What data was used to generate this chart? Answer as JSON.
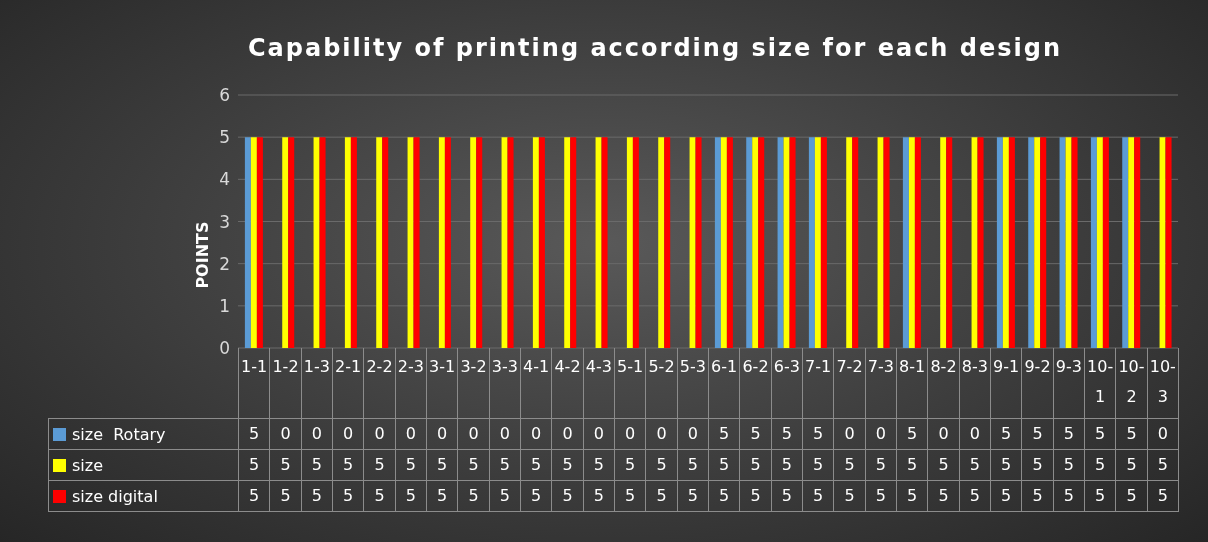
{
  "chart_data": {
    "type": "bar",
    "title": "Capability of printing according size for each design",
    "ylabel": "POINTS",
    "categories": [
      "1-1",
      "1-2",
      "1-3",
      "2-1",
      "2-2",
      "2-3",
      "3-1",
      "3-2",
      "3-3",
      "4-1",
      "4-2",
      "4-3",
      "5-1",
      "5-2",
      "5-3",
      "6-1",
      "6-2",
      "6-3",
      "7-1",
      "7-2",
      "7-3",
      "8-1",
      "8-2",
      "8-3",
      "9-1",
      "9-2",
      "9-3",
      "10-1",
      "10-2",
      "10-3"
    ],
    "series": [
      {
        "name": "size  Rotary",
        "color": "#5b9bd5",
        "values": [
          5,
          0,
          0,
          0,
          0,
          0,
          0,
          0,
          0,
          0,
          0,
          0,
          0,
          0,
          0,
          5,
          5,
          5,
          5,
          0,
          0,
          5,
          0,
          0,
          5,
          5,
          5,
          5,
          5,
          0
        ]
      },
      {
        "name": "size",
        "color": "#ffff00",
        "values": [
          5,
          5,
          5,
          5,
          5,
          5,
          5,
          5,
          5,
          5,
          5,
          5,
          5,
          5,
          5,
          5,
          5,
          5,
          5,
          5,
          5,
          5,
          5,
          5,
          5,
          5,
          5,
          5,
          5,
          5
        ]
      },
      {
        "name": "size digital",
        "color": "#ff0000",
        "values": [
          5,
          5,
          5,
          5,
          5,
          5,
          5,
          5,
          5,
          5,
          5,
          5,
          5,
          5,
          5,
          5,
          5,
          5,
          5,
          5,
          5,
          5,
          5,
          5,
          5,
          5,
          5,
          5,
          5,
          5
        ]
      }
    ],
    "ylim": [
      0,
      6
    ],
    "yticks": [
      0,
      1,
      2,
      3,
      4,
      5,
      6
    ],
    "grid": "y",
    "legend": "bottom",
    "data_labels": true
  }
}
